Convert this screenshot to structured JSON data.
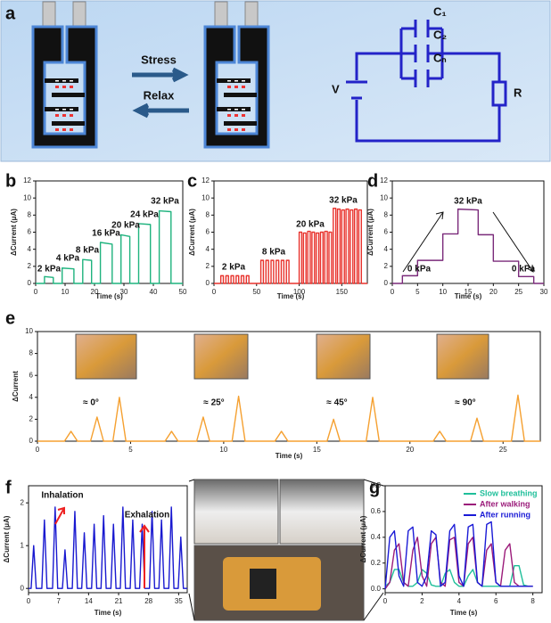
{
  "panel_labels": [
    "a",
    "b",
    "c",
    "d",
    "e",
    "f",
    "g"
  ],
  "diagram": {
    "stress": "Stress",
    "relax": "Relax",
    "v": "V",
    "r": "R",
    "c1": "C₁",
    "c2": "C₂",
    "cn": "Cₙ"
  },
  "chart_data": [
    {
      "type": "line",
      "xlabel": "Time (s)",
      "ylabel": "ΔCurrent (μA)",
      "xlim": [
        0,
        50
      ],
      "xticks": [
        0,
        10,
        20,
        30,
        40,
        50
      ],
      "ylim": [
        0,
        12
      ],
      "yticks": [
        0,
        2,
        4,
        6,
        8,
        10,
        12
      ],
      "x": [
        0,
        3,
        3,
        6,
        6,
        9,
        9,
        13,
        13,
        16,
        16,
        19,
        19,
        22,
        22,
        26,
        26,
        29,
        29,
        32,
        32,
        35,
        35,
        39,
        39,
        42,
        42,
        46,
        46,
        50
      ],
      "series": [
        {
          "color": "#1fb37e",
          "values": [
            0,
            0,
            0.8,
            0.7,
            0,
            0,
            1.8,
            1.7,
            0,
            0,
            2.8,
            2.7,
            0,
            0,
            4.8,
            4.6,
            0,
            0,
            5.7,
            5.5,
            0,
            0,
            7.0,
            6.9,
            0,
            0,
            8.5,
            8.4,
            0,
            0
          ]
        }
      ],
      "annotations": [
        "2 kPa",
        "4 kPa",
        "8 kPa",
        "16 kPa",
        "20 kPa",
        "24 kPa",
        "32 kPa"
      ]
    },
    {
      "type": "line",
      "xlabel": "Time (s)",
      "ylabel": "ΔCurrent (μA)",
      "xlim": [
        0,
        180
      ],
      "xticks": [
        0,
        50,
        100,
        150
      ],
      "ylim": [
        0,
        12
      ],
      "yticks": [
        0,
        2,
        4,
        6,
        8,
        10,
        12
      ],
      "x": [
        0,
        8,
        8,
        11,
        11,
        14,
        14,
        17,
        17,
        20,
        20,
        23,
        23,
        26,
        26,
        29,
        29,
        32,
        32,
        35,
        35,
        38,
        38,
        41,
        41,
        55,
        55,
        58,
        58,
        61,
        61,
        64,
        64,
        67,
        67,
        70,
        70,
        73,
        73,
        76,
        76,
        79,
        79,
        82,
        82,
        85,
        85,
        88,
        88,
        100,
        100,
        103,
        103,
        105,
        105,
        108,
        108,
        110,
        110,
        113,
        113,
        115,
        115,
        118,
        118,
        120,
        120,
        123,
        123,
        125,
        125,
        128,
        128,
        130,
        130,
        133,
        133,
        135,
        135,
        138,
        138,
        140,
        140,
        143,
        143,
        145,
        145,
        148,
        148,
        150,
        150,
        153,
        153,
        155,
        155,
        158,
        158,
        160,
        160,
        163,
        163,
        165,
        165,
        168,
        168,
        170,
        170,
        173,
        173,
        180
      ],
      "series": [
        {
          "color": "#e8322c",
          "values": [
            0,
            0,
            0.9,
            0.9,
            0,
            0,
            0.9,
            0.9,
            0,
            0,
            0.9,
            0.9,
            0,
            0,
            0.9,
            0.9,
            0,
            0,
            0.9,
            0.9,
            0,
            0,
            0.9,
            0.9,
            0,
            0,
            2.7,
            2.7,
            0,
            0,
            2.7,
            2.7,
            0,
            0,
            2.7,
            2.7,
            0,
            0,
            2.7,
            2.7,
            0,
            0,
            2.7,
            2.7,
            0,
            0,
            2.7,
            2.7,
            0,
            0,
            6.0,
            6.0,
            0,
            0,
            5.9,
            5.9,
            0,
            0,
            6.1,
            6.1,
            0,
            0,
            6.0,
            6.0,
            0,
            0,
            5.9,
            5.9,
            0,
            0,
            6.0,
            6.0,
            0,
            0,
            6.1,
            6.1,
            0,
            0,
            6.0,
            6.0,
            0,
            0,
            8.8,
            8.8,
            0,
            0,
            8.7,
            8.7,
            0,
            0,
            8.6,
            8.6,
            0,
            0,
            8.7,
            8.7,
            0,
            0,
            8.6,
            8.6,
            0,
            0,
            8.7,
            8.7,
            0,
            0,
            8.6,
            8.6,
            0,
            0
          ]
        }
      ],
      "annotations": [
        "2 kPa",
        "8 kPa",
        "20 kPa",
        "32 kPa"
      ]
    },
    {
      "type": "line",
      "xlabel": "Time (s)",
      "ylabel": "ΔCurrent (μA)",
      "xlim": [
        0,
        30
      ],
      "xticks": [
        0,
        5,
        10,
        15,
        20,
        25,
        30
      ],
      "ylim": [
        0,
        12
      ],
      "yticks": [
        0,
        2,
        4,
        6,
        8,
        10,
        12
      ],
      "x": [
        0,
        2,
        2,
        5,
        5,
        10,
        10,
        13,
        13,
        17,
        17,
        20,
        20,
        25,
        25,
        28,
        28,
        30
      ],
      "series": [
        {
          "color": "#7a2a7a",
          "values": [
            0,
            0,
            0.9,
            0.9,
            2.7,
            2.7,
            5.8,
            5.8,
            8.7,
            8.6,
            5.7,
            5.7,
            2.6,
            2.6,
            0.8,
            0.8,
            0,
            0
          ]
        }
      ],
      "annotations": [
        "32 kPa",
        "0 kPa",
        "0 kPa"
      ]
    },
    {
      "type": "line",
      "xlabel": "Time (s)",
      "ylabel": "ΔCurrent",
      "xlim": [
        0,
        27
      ],
      "xticks": [
        0,
        5,
        10,
        15,
        20,
        25
      ],
      "ylim": [
        0,
        10
      ],
      "yticks": [
        0,
        2,
        4,
        6,
        8,
        10
      ],
      "x": [
        0,
        1.45,
        1.8,
        2.15,
        2.85,
        3.2,
        3.55,
        4.05,
        4.4,
        4.75,
        6.85,
        7.2,
        7.55,
        8.55,
        8.9,
        9.25,
        10.45,
        10.8,
        11.15,
        12.75,
        13.1,
        13.45,
        15.55,
        15.9,
        16.25,
        17.65,
        18,
        18.35,
        21.25,
        21.6,
        21.95,
        23.25,
        23.6,
        23.95,
        25.45,
        25.8,
        26.15,
        27
      ],
      "series": [
        {
          "color": "#f5a030",
          "values": [
            0,
            0,
            0.9,
            0,
            0,
            2.2,
            0,
            0,
            4.0,
            0,
            0,
            0.9,
            0,
            0,
            2.2,
            0,
            0,
            4.1,
            0,
            0,
            0.9,
            0,
            0,
            2.0,
            0,
            0,
            4.0,
            0,
            0,
            0.9,
            0,
            0,
            2.1,
            0,
            0,
            4.2,
            0,
            0
          ]
        }
      ],
      "annotations": [
        "≈ 0°",
        "≈ 25°",
        "≈ 45°",
        "≈ 90°"
      ]
    },
    {
      "type": "line",
      "xlabel": "Time (s)",
      "ylabel": "ΔCurrent (μA)",
      "xlim": [
        0,
        37
      ],
      "xticks": [
        0,
        7,
        14,
        21,
        28,
        35
      ],
      "ylim": [
        -0.1,
        2.4
      ],
      "yticks": [
        0,
        1,
        2
      ],
      "x": [
        0,
        0.6,
        1.2,
        1.8,
        3.1,
        3.7,
        4.3,
        5.6,
        6.2,
        6.8,
        7.9,
        8.5,
        9.1,
        10.2,
        10.8,
        11.4,
        12.4,
        13,
        13.6,
        14.7,
        15.3,
        15.9,
        16.9,
        17.5,
        18.1,
        19.2,
        19.8,
        20.4,
        21.4,
        22,
        22.6,
        23.7,
        24.3,
        24.9,
        25.9,
        26.5,
        27.1,
        28.2,
        28.8,
        29.4,
        30.4,
        31,
        31.6,
        32.7,
        33.3,
        33.9,
        34.9,
        35.5,
        36.1,
        37
      ],
      "series": [
        {
          "color": "#1919d0",
          "values": [
            0,
            0,
            1.0,
            0,
            0,
            1.6,
            0,
            0,
            1.9,
            0,
            0,
            0.9,
            0,
            0,
            1.8,
            0,
            0,
            1.3,
            0,
            0,
            1.5,
            0,
            0,
            1.7,
            0,
            0,
            1.5,
            0,
            0,
            1.9,
            0,
            0,
            1.6,
            0,
            0,
            1.5,
            0,
            0,
            1.8,
            0,
            0,
            1.6,
            0,
            0,
            1.9,
            0,
            0,
            1.2,
            0,
            0
          ]
        }
      ],
      "annotations": [
        "Inhalation",
        "Exhalation"
      ]
    },
    {
      "type": "line",
      "xlabel": "Time (s)",
      "ylabel": "ΔCurrent (μA)",
      "xlim": [
        0,
        8.5
      ],
      "xticks": [
        0,
        2,
        4,
        6,
        8
      ],
      "ylim": [
        -0.03,
        0.8
      ],
      "yticks": [
        {
          "value": 0,
          "label": "0.0"
        },
        0.2,
        0.4,
        0.6,
        0.8
      ],
      "legend": "top-right",
      "x": [
        0,
        0.25,
        0.5,
        0.75,
        1,
        1.25,
        1.5,
        1.75,
        2,
        2.25,
        2.5,
        2.75,
        3,
        3.25,
        3.5,
        3.75,
        4,
        4.25,
        4.5,
        4.75,
        5,
        5.25,
        5.5,
        5.75,
        6,
        6.25,
        6.5,
        6.75,
        7,
        7.25,
        7.5,
        7.75,
        8
      ],
      "series": [
        {
          "name": "Slow breathing",
          "color": "#1fbf9a",
          "values": [
            0.02,
            0.05,
            0.15,
            0.15,
            0.05,
            0.02,
            0.02,
            0.05,
            0.15,
            0.12,
            0.03,
            0.02,
            0.02,
            0.12,
            0.15,
            0.05,
            0.02,
            0.02,
            0.1,
            0.15,
            0.05,
            0.02,
            0.02,
            0.02,
            0.02,
            0.02,
            0.02,
            0.02,
            0.18,
            0.18,
            0.03,
            0.02,
            0.02
          ]
        },
        {
          "name": "After walking",
          "color": "#9b1b7a",
          "values": [
            0,
            0.05,
            0.3,
            0.35,
            0.05,
            0.02,
            0.3,
            0.4,
            0.1,
            0.02,
            0.35,
            0.4,
            0.05,
            0.02,
            0.38,
            0.4,
            0.05,
            0.02,
            0.35,
            0.4,
            0.05,
            0.02,
            0.3,
            0.35,
            0.05,
            0.02,
            0.3,
            0.35,
            0.05,
            0.02,
            0.02,
            0.02,
            0.02
          ]
        },
        {
          "name": "After running",
          "color": "#1a1ad6",
          "values": [
            0,
            0.4,
            0.45,
            0.1,
            0.02,
            0.45,
            0.48,
            0.05,
            0.02,
            0.1,
            0.45,
            0.42,
            0.02,
            0.05,
            0.45,
            0.5,
            0.1,
            0.02,
            0.48,
            0.5,
            0.05,
            0.02,
            0.5,
            0.52,
            0.05,
            0.02,
            0.02,
            0.02,
            0.02,
            0.02,
            0.02,
            0.02,
            0.02
          ]
        }
      ]
    }
  ]
}
